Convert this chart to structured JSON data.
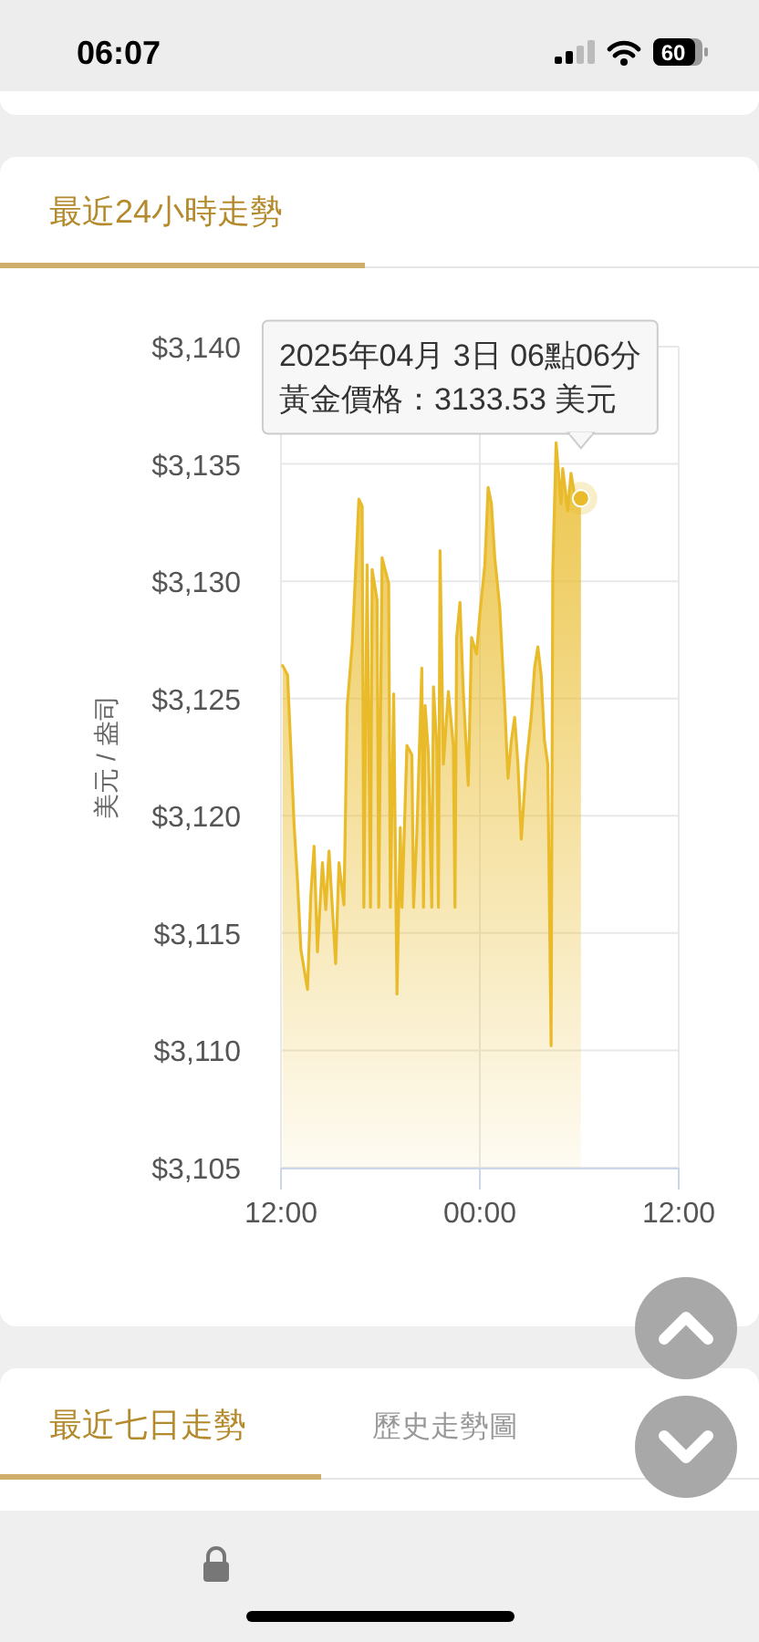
{
  "chart_data": {
    "type": "area",
    "title": "最近24小時走勢",
    "ylabel": "美元 / 盎司",
    "x": [
      "2025-04-02T12:06",
      "2025-04-02T12:24",
      "2025-04-02T12:48",
      "2025-04-02T13:00",
      "2025-04-02T13:12",
      "2025-04-02T13:36",
      "2025-04-02T13:48",
      "2025-04-02T14:00",
      "2025-04-02T14:12",
      "2025-04-02T14:30",
      "2025-04-02T14:42",
      "2025-04-02T14:54",
      "2025-04-02T15:18",
      "2025-04-02T15:30",
      "2025-04-02T15:48",
      "2025-04-02T16:00",
      "2025-04-02T16:18",
      "2025-04-02T16:42",
      "2025-04-02T16:54",
      "2025-04-02T17:00",
      "2025-04-02T17:12",
      "2025-04-02T17:24",
      "2025-04-02T17:30",
      "2025-04-02T17:48",
      "2025-04-02T17:54",
      "2025-04-02T18:06",
      "2025-04-02T18:30",
      "2025-04-02T18:36",
      "2025-04-02T18:48",
      "2025-04-02T19:00",
      "2025-04-02T19:12",
      "2025-04-02T19:18",
      "2025-04-02T19:36",
      "2025-04-02T19:54",
      "2025-04-02T20:00",
      "2025-04-02T20:12",
      "2025-04-02T20:30",
      "2025-04-02T20:36",
      "2025-04-02T20:42",
      "2025-04-02T20:54",
      "2025-04-02T21:06",
      "2025-04-02T21:12",
      "2025-04-02T21:24",
      "2025-04-02T21:30",
      "2025-04-02T21:36",
      "2025-04-02T21:48",
      "2025-04-02T22:06",
      "2025-04-02T22:24",
      "2025-04-02T22:30",
      "2025-04-02T22:36",
      "2025-04-02T22:48",
      "2025-04-02T23:00",
      "2025-04-02T23:18",
      "2025-04-02T23:30",
      "2025-04-02T23:48",
      "2025-04-03T00:00",
      "2025-04-03T00:18",
      "2025-04-03T00:30",
      "2025-04-03T00:42",
      "2025-04-03T00:54",
      "2025-04-03T01:12",
      "2025-04-03T01:30",
      "2025-04-03T01:42",
      "2025-04-03T01:54",
      "2025-04-03T02:06",
      "2025-04-03T02:18",
      "2025-04-03T02:30",
      "2025-04-03T02:48",
      "2025-04-03T03:06",
      "2025-04-03T03:18",
      "2025-04-03T03:30",
      "2025-04-03T03:42",
      "2025-04-03T03:54",
      "2025-04-03T04:06",
      "2025-04-03T04:18",
      "2025-04-03T04:24",
      "2025-04-03T04:36",
      "2025-04-03T04:54",
      "2025-04-03T05:00",
      "2025-04-03T05:18",
      "2025-04-03T05:30",
      "2025-04-03T05:48",
      "2025-04-03T06:06"
    ],
    "series": [
      {
        "color": "#e9bb2a",
        "values": [
          3126.4,
          3126.0,
          3119.5,
          3117.2,
          3114.3,
          3112.6,
          3116.6,
          3118.7,
          3114.2,
          3118.0,
          3116.0,
          3118.5,
          3113.7,
          3118.0,
          3116.2,
          3124.7,
          3127.3,
          3133.5,
          3133.2,
          3116.1,
          3130.7,
          3116.1,
          3130.5,
          3129.2,
          3116.1,
          3131.0,
          3129.9,
          3116.1,
          3125.2,
          3112.4,
          3119.5,
          3116.1,
          3123.0,
          3122.6,
          3116.1,
          3119.3,
          3126.3,
          3116.1,
          3124.7,
          3122.6,
          3116.1,
          3125.5,
          3123.0,
          3116.1,
          3131.3,
          3122.2,
          3125.3,
          3123.0,
          3116.1,
          3127.6,
          3129.1,
          3125.3,
          3121.3,
          3127.6,
          3126.9,
          3128.6,
          3130.7,
          3134.0,
          3133.3,
          3131.0,
          3128.9,
          3124.7,
          3121.6,
          3123.2,
          3124.2,
          3122.2,
          3119.0,
          3122.2,
          3124.2,
          3126.3,
          3127.2,
          3126.0,
          3123.2,
          3122.2,
          3110.2,
          3130.4,
          3135.9,
          3133.3,
          3134.8,
          3133.0,
          3134.6,
          3133.3,
          3133.53
        ]
      }
    ],
    "xlim": [
      "2025-04-02T12:00",
      "2025-04-03T12:00"
    ],
    "xticks": [
      {
        "value": "2025-04-02T12:00",
        "label": "12:00"
      },
      {
        "value": "2025-04-03T00:00",
        "label": "00:00"
      },
      {
        "value": "2025-04-03T12:00",
        "label": "12:00"
      }
    ],
    "ylim": [
      3105,
      3140
    ],
    "yticks": [
      {
        "value": 3105,
        "label": "$3,105"
      },
      {
        "value": 3110,
        "label": "$3,110"
      },
      {
        "value": 3115,
        "label": "$3,115"
      },
      {
        "value": 3120,
        "label": "$3,120"
      },
      {
        "value": 3125,
        "label": "$3,125"
      },
      {
        "value": 3130,
        "label": "$3,130"
      },
      {
        "value": 3135,
        "label": "$3,135"
      },
      {
        "value": 3140,
        "label": "$3,140"
      }
    ],
    "grid": true,
    "annotations": [
      "2025年04月 3日 06點06分",
      {
        "text": "黃金價格：3133.53 美元",
        "x": "2025-04-03T06:06",
        "y": 3133.53
      },
      "最近七日走勢",
      "歷史走勢圖",
      "06:07",
      "60"
    ]
  }
}
